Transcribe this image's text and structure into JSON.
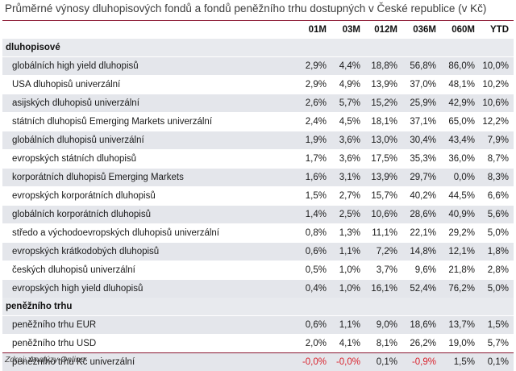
{
  "title": "Průměrné výnosy dluhopisových fondů a fondů peněžního trhu dostupných v České republice (v Kč)",
  "columns": [
    "01M",
    "03M",
    "012M",
    "036M",
    "060M",
    "YTD"
  ],
  "sections": [
    {
      "label": "dluhopisové",
      "rows": [
        {
          "name": "globálních high yield dluhopisů",
          "values": [
            "2,9%",
            "4,4%",
            "18,8%",
            "56,8%",
            "86,0%",
            "10,0%"
          ]
        },
        {
          "name": "USA dluhopisů univerzální",
          "values": [
            "2,9%",
            "4,9%",
            "13,9%",
            "37,0%",
            "48,1%",
            "10,2%"
          ]
        },
        {
          "name": "asijských dluhopisů univerzální",
          "values": [
            "2,6%",
            "5,7%",
            "15,2%",
            "25,9%",
            "42,9%",
            "10,6%"
          ]
        },
        {
          "name": "státních dluhopisů Emerging Markets univerzální",
          "values": [
            "2,4%",
            "4,5%",
            "18,1%",
            "37,1%",
            "65,0%",
            "12,2%"
          ]
        },
        {
          "name": "globálních dluhopisů univerzální",
          "values": [
            "1,9%",
            "3,6%",
            "13,0%",
            "30,4%",
            "43,4%",
            "7,9%"
          ]
        },
        {
          "name": "evropských státních dluhopisů",
          "values": [
            "1,7%",
            "3,6%",
            "17,5%",
            "35,3%",
            "36,0%",
            "8,7%"
          ]
        },
        {
          "name": "korporátních dluhopisů Emerging Markets",
          "values": [
            "1,6%",
            "3,1%",
            "13,9%",
            "29,7%",
            "0,0%",
            "8,3%"
          ]
        },
        {
          "name": "evropských korporátních dluhopisů",
          "values": [
            "1,5%",
            "2,7%",
            "15,7%",
            "40,2%",
            "44,5%",
            "6,6%"
          ]
        },
        {
          "name": "globálních korporátních dluhopisů",
          "values": [
            "1,4%",
            "2,5%",
            "10,6%",
            "28,6%",
            "40,9%",
            "5,6%"
          ]
        },
        {
          "name": "středo a východoevropských dluhopisů univerzální",
          "values": [
            "0,8%",
            "1,3%",
            "11,1%",
            "22,1%",
            "29,2%",
            "5,0%"
          ]
        },
        {
          "name": "evropských krátkodobých dluhopisů",
          "values": [
            "0,6%",
            "1,1%",
            "7,2%",
            "14,8%",
            "12,1%",
            "1,8%"
          ]
        },
        {
          "name": "českých dluhopisů univerzální",
          "values": [
            "0,5%",
            "1,0%",
            "3,7%",
            "9,6%",
            "21,8%",
            "2,8%"
          ]
        },
        {
          "name": "evropských high yield dluhopisů",
          "values": [
            "0,4%",
            "1,0%",
            "16,1%",
            "52,4%",
            "76,2%",
            "5,0%"
          ]
        }
      ]
    },
    {
      "label": "peněžního trhu",
      "rows": [
        {
          "name": "peněžního trhu EUR",
          "values": [
            "0,6%",
            "1,1%",
            "9,0%",
            "18,6%",
            "13,7%",
            "1,5%"
          ]
        },
        {
          "name": "peněžního trhu USD",
          "values": [
            "2,0%",
            "4,1%",
            "8,1%",
            "26,2%",
            "19,0%",
            "5,7%"
          ]
        },
        {
          "name": "peněžního trhu Kč univerzální",
          "values": [
            "-0,0%",
            "-0,0%",
            "0,1%",
            "-0,9%",
            "1,5%",
            "0,1%"
          ]
        }
      ]
    }
  ],
  "source": "Zdroj: Analýzy Online",
  "colors": {
    "accent_rule": "#8a1630",
    "row_shade": "#e4e6eb",
    "negative": "#d9232d"
  }
}
